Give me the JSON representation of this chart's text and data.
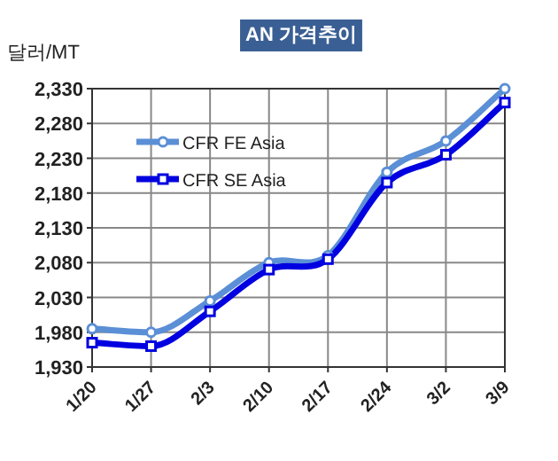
{
  "chart_data": {
    "type": "line",
    "title": "AN 가격추이",
    "ylabel": "달러/MT",
    "categories": [
      "1/20",
      "1/27",
      "2/3",
      "2/10",
      "2/17",
      "2/24",
      "3/2",
      "3/9"
    ],
    "series": [
      {
        "name": "CFR FE Asia",
        "color": "#5b8fd6",
        "marker": "circle",
        "values": [
          1985,
          1980,
          2025,
          2080,
          2090,
          2210,
          2255,
          2330
        ]
      },
      {
        "name": "CFR SE Asia",
        "color": "#0000e0",
        "marker": "square",
        "values": [
          1965,
          1960,
          2010,
          2070,
          2085,
          2195,
          2235,
          2310
        ]
      }
    ],
    "ylim": [
      1930,
      2330
    ],
    "yticks": [
      {
        "value": 1930,
        "label": "1,930"
      },
      {
        "value": 1980,
        "label": "1,980"
      },
      {
        "value": 2030,
        "label": "2,030"
      },
      {
        "value": 2080,
        "label": "2,080"
      },
      {
        "value": 2130,
        "label": "2,130"
      },
      {
        "value": 2180,
        "label": "2,180"
      },
      {
        "value": 2230,
        "label": "2,230"
      },
      {
        "value": 2280,
        "label": "2,280"
      },
      {
        "value": 2330,
        "label": "2,330"
      }
    ],
    "grid": true,
    "legend": "top left",
    "line_style": "solid"
  }
}
